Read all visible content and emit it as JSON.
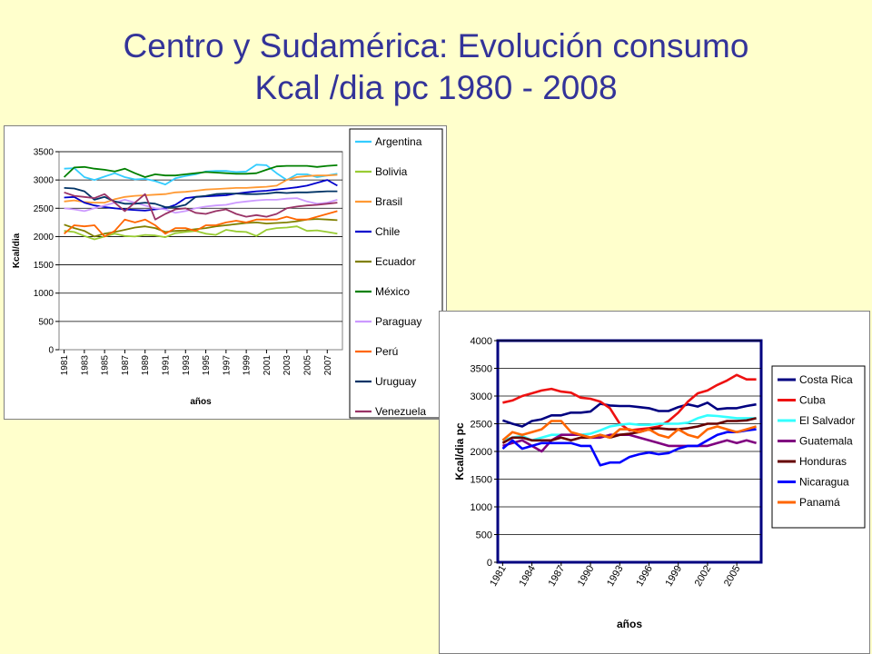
{
  "title": {
    "line1": "Centro y Sudamérica: Evolución consumo",
    "line2": "Kcal /dia pc 1980 - 2008"
  },
  "colors": {
    "background": "#ffffcc",
    "title": "#333399"
  },
  "chart_data": [
    {
      "type": "line",
      "title": "",
      "xlabel": "años",
      "ylabel": "Kcal/dia",
      "x": [
        1981,
        1982,
        1983,
        1984,
        1985,
        1986,
        1987,
        1988,
        1989,
        1990,
        1991,
        1992,
        1993,
        1994,
        1995,
        1996,
        1997,
        1998,
        1999,
        2000,
        2001,
        2002,
        2003,
        2004,
        2005,
        2006,
        2007,
        2008
      ],
      "x_tick_labels": [
        "1981",
        "1983",
        "1985",
        "1987",
        "1989",
        "1991",
        "1993",
        "1995",
        "1997",
        "1999",
        "2001",
        "2003",
        "2005",
        "2007"
      ],
      "ylim": [
        0,
        3500
      ],
      "y_ticks": [
        0,
        500,
        1000,
        1500,
        2000,
        2500,
        3000,
        3500
      ],
      "grid": "horizontal",
      "legend": "right",
      "series": [
        {
          "name": "Argentina",
          "color": "#33ccff",
          "values": [
            3200,
            3210,
            3050,
            3000,
            3060,
            3120,
            3050,
            3010,
            3020,
            2980,
            2920,
            3030,
            3070,
            3100,
            3150,
            3160,
            3160,
            3140,
            3150,
            3270,
            3260,
            3120,
            3000,
            3100,
            3100,
            3050,
            3080,
            3110
          ]
        },
        {
          "name": "Bolivia",
          "color": "#99cc33",
          "values": [
            2100,
            2080,
            2010,
            1950,
            2000,
            2050,
            2010,
            2000,
            2030,
            2020,
            1990,
            2060,
            2080,
            2100,
            2050,
            2030,
            2120,
            2090,
            2080,
            2010,
            2120,
            2150,
            2160,
            2180,
            2100,
            2110,
            2080,
            2050
          ]
        },
        {
          "name": "Brasil",
          "color": "#ff9933",
          "values": [
            2620,
            2640,
            2610,
            2600,
            2600,
            2660,
            2700,
            2720,
            2730,
            2740,
            2750,
            2780,
            2790,
            2810,
            2830,
            2840,
            2850,
            2860,
            2860,
            2870,
            2880,
            2900,
            3000,
            3050,
            3070,
            3080,
            3080,
            3090
          ]
        },
        {
          "name": "Chile",
          "color": "#0000cc",
          "values": [
            2690,
            2700,
            2600,
            2550,
            2520,
            2500,
            2480,
            2470,
            2460,
            2480,
            2500,
            2560,
            2680,
            2700,
            2710,
            2720,
            2730,
            2760,
            2780,
            2800,
            2810,
            2830,
            2850,
            2870,
            2900,
            2950,
            3000,
            2900
          ]
        },
        {
          "name": "Ecuador",
          "color": "#808000",
          "values": [
            2210,
            2150,
            2100,
            2000,
            2050,
            2080,
            2120,
            2160,
            2180,
            2150,
            2080,
            2100,
            2110,
            2130,
            2150,
            2180,
            2200,
            2220,
            2240,
            2250,
            2230,
            2240,
            2250,
            2270,
            2300,
            2310,
            2300,
            2290
          ]
        },
        {
          "name": "México",
          "color": "#008000",
          "values": [
            3050,
            3220,
            3230,
            3200,
            3180,
            3150,
            3200,
            3120,
            3050,
            3100,
            3080,
            3080,
            3100,
            3120,
            3140,
            3130,
            3120,
            3110,
            3110,
            3120,
            3180,
            3240,
            3250,
            3250,
            3250,
            3230,
            3250,
            3260
          ]
        },
        {
          "name": "Paraguay",
          "color": "#cc99ff",
          "values": [
            2500,
            2480,
            2450,
            2500,
            2550,
            2600,
            2650,
            2600,
            2550,
            2500,
            2480,
            2420,
            2450,
            2500,
            2530,
            2550,
            2560,
            2600,
            2620,
            2640,
            2650,
            2650,
            2670,
            2680,
            2620,
            2580,
            2600,
            2650
          ]
        },
        {
          "name": "Perú",
          "color": "#ff6600",
          "values": [
            2050,
            2200,
            2180,
            2200,
            2000,
            2100,
            2300,
            2250,
            2300,
            2200,
            2050,
            2150,
            2150,
            2100,
            2200,
            2200,
            2250,
            2280,
            2250,
            2300,
            2300,
            2300,
            2350,
            2300,
            2300,
            2350,
            2400,
            2450
          ]
        },
        {
          "name": "Uruguay",
          "color": "#003366",
          "values": [
            2860,
            2850,
            2800,
            2650,
            2700,
            2620,
            2580,
            2580,
            2600,
            2580,
            2520,
            2520,
            2560,
            2700,
            2720,
            2750,
            2760,
            2760,
            2750,
            2750,
            2760,
            2780,
            2770,
            2780,
            2780,
            2790,
            2800,
            2800
          ]
        },
        {
          "name": "Venezuela",
          "color": "#993366",
          "values": [
            2780,
            2720,
            2700,
            2680,
            2750,
            2600,
            2450,
            2600,
            2750,
            2300,
            2400,
            2480,
            2500,
            2420,
            2400,
            2450,
            2480,
            2400,
            2350,
            2380,
            2350,
            2400,
            2500,
            2530,
            2550,
            2560,
            2580,
            2600
          ]
        }
      ]
    },
    {
      "type": "line",
      "title": "",
      "xlabel": "años",
      "ylabel": "Kcal/dia pc",
      "x": [
        1981,
        1982,
        1983,
        1984,
        1985,
        1986,
        1987,
        1988,
        1989,
        1990,
        1991,
        1992,
        1993,
        1994,
        1995,
        1996,
        1997,
        1998,
        1999,
        2000,
        2001,
        2002,
        2003,
        2004,
        2005,
        2006,
        2007
      ],
      "x_tick_labels": [
        "1981",
        "1984",
        "1987",
        "1990",
        "1993",
        "1996",
        "1999",
        "2002",
        "2005"
      ],
      "ylim": [
        0,
        4000
      ],
      "y_ticks": [
        0,
        500,
        1000,
        1500,
        2000,
        2500,
        3000,
        3500,
        4000
      ],
      "grid": "horizontal",
      "legend": "right",
      "series": [
        {
          "name": "Costa Rica",
          "color": "#000080",
          "values": [
            2560,
            2500,
            2450,
            2550,
            2580,
            2650,
            2650,
            2700,
            2700,
            2720,
            2860,
            2830,
            2820,
            2820,
            2800,
            2780,
            2730,
            2730,
            2800,
            2850,
            2810,
            2880,
            2760,
            2780,
            2780,
            2820,
            2850
          ]
        },
        {
          "name": "Cuba",
          "color": "#ee1111",
          "values": [
            2880,
            2920,
            3000,
            3050,
            3100,
            3130,
            3080,
            3060,
            2970,
            2950,
            2900,
            2780,
            2500,
            2380,
            2400,
            2420,
            2450,
            2550,
            2700,
            2900,
            3050,
            3100,
            3200,
            3280,
            3380,
            3300,
            3300
          ]
        },
        {
          "name": "El Salvador",
          "color": "#33ffff",
          "values": [
            2200,
            2250,
            2280,
            2200,
            2250,
            2300,
            2300,
            2300,
            2300,
            2320,
            2380,
            2450,
            2480,
            2500,
            2480,
            2480,
            2500,
            2500,
            2500,
            2520,
            2600,
            2650,
            2640,
            2620,
            2600,
            2600,
            2600
          ]
        },
        {
          "name": "Guatemala",
          "color": "#800080",
          "values": [
            2100,
            2150,
            2200,
            2100,
            2000,
            2200,
            2300,
            2300,
            2300,
            2250,
            2250,
            2300,
            2300,
            2300,
            2250,
            2200,
            2150,
            2100,
            2100,
            2100,
            2100,
            2100,
            2150,
            2200,
            2150,
            2200,
            2150
          ]
        },
        {
          "name": "Honduras",
          "color": "#660000",
          "values": [
            2150,
            2250,
            2250,
            2200,
            2200,
            2200,
            2250,
            2200,
            2250,
            2250,
            2300,
            2250,
            2300,
            2320,
            2350,
            2400,
            2420,
            2400,
            2400,
            2420,
            2450,
            2500,
            2500,
            2550,
            2550,
            2560,
            2600
          ]
        },
        {
          "name": "Nicaragua",
          "color": "#0000ff",
          "values": [
            2050,
            2200,
            2050,
            2100,
            2150,
            2150,
            2150,
            2150,
            2100,
            2100,
            1750,
            1800,
            1800,
            1900,
            1950,
            1980,
            1950,
            1970,
            2050,
            2100,
            2100,
            2200,
            2300,
            2350,
            2350,
            2380,
            2400
          ]
        },
        {
          "name": "Panamá",
          "color": "#ff6600",
          "values": [
            2200,
            2350,
            2300,
            2350,
            2400,
            2550,
            2550,
            2350,
            2300,
            2250,
            2300,
            2250,
            2400,
            2400,
            2350,
            2400,
            2300,
            2250,
            2400,
            2300,
            2250,
            2400,
            2450,
            2400,
            2350,
            2400,
            2450
          ]
        }
      ]
    }
  ]
}
